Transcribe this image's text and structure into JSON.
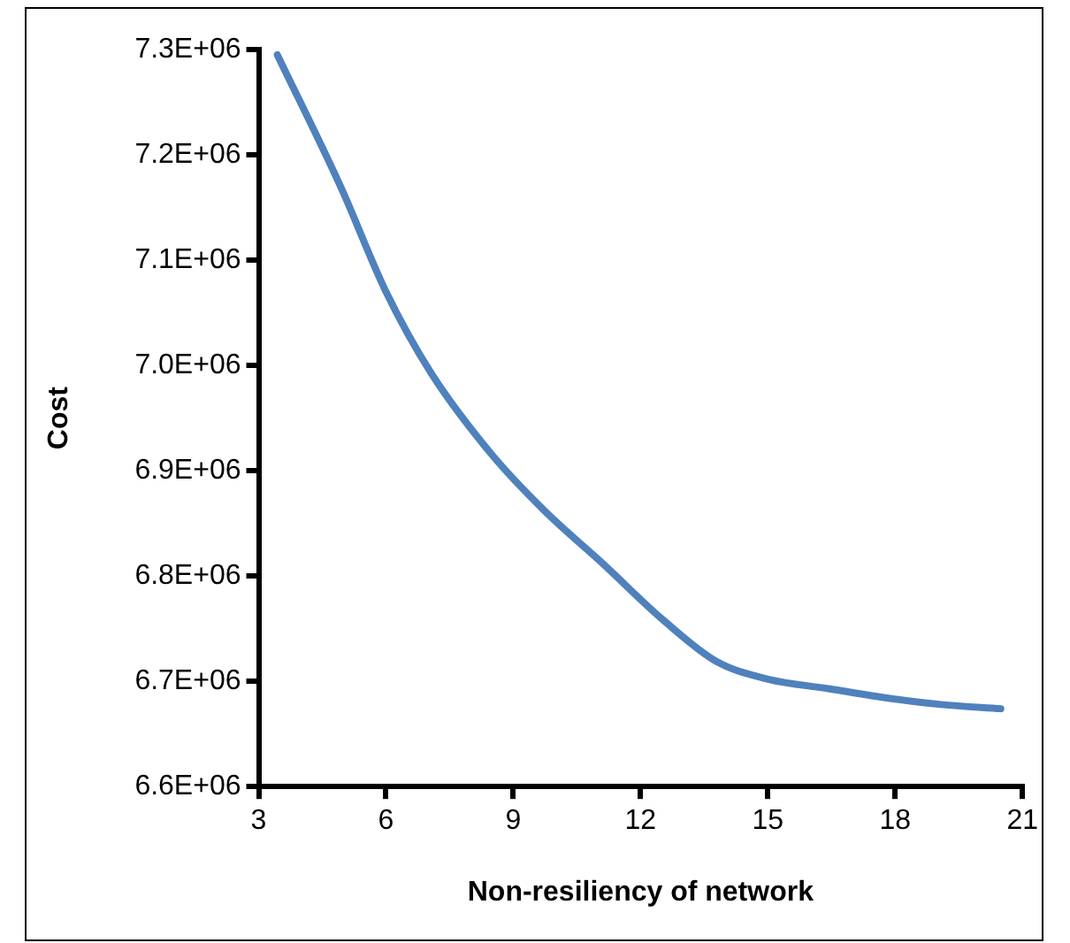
{
  "chart_data": {
    "type": "line",
    "xlabel": "Non-resiliency of network",
    "ylabel": "Cost",
    "xlim": [
      3,
      21
    ],
    "xticks": [
      3,
      6,
      9,
      12,
      15,
      18,
      21
    ],
    "ylim": [
      6600000,
      7300000
    ],
    "yticks": [
      {
        "value": 6600000,
        "label": "6.6E+06"
      },
      {
        "value": 6700000,
        "label": "6.7E+06"
      },
      {
        "value": 6800000,
        "label": "6.8E+06"
      },
      {
        "value": 6900000,
        "label": "6.9E+06"
      },
      {
        "value": 7000000,
        "label": "7.0E+06"
      },
      {
        "value": 7100000,
        "label": "7.1E+06"
      },
      {
        "value": 7200000,
        "label": "7.2E+06"
      },
      {
        "value": 7300000,
        "label": "7.3E+06"
      }
    ],
    "grid": false,
    "legend": false,
    "marker": "none",
    "line_style": "solid",
    "series": [
      {
        "color": "#4f81bd",
        "x": [
          3.44,
          4.94,
          6.0,
          7.06,
          8.48,
          9.71,
          11.13,
          12.54,
          13.78,
          15.01,
          16.43,
          17.84,
          19.08,
          20.49
        ],
        "values": [
          7295000,
          7169000,
          7070000,
          6993000,
          6916000,
          6863000,
          6811000,
          6758000,
          6719000,
          6702000,
          6693000,
          6684000,
          6678000,
          6674000
        ]
      }
    ]
  }
}
